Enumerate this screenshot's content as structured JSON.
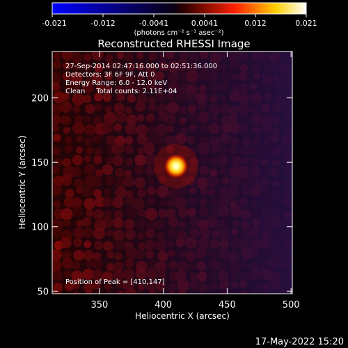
{
  "colorbar": {
    "ticks": [
      "-0.021",
      "-0.012",
      "-0.0041",
      "0.0041",
      "0.012",
      "0.021"
    ],
    "unit_label": "(photons cm⁻² s⁻¹ asec⁻²)",
    "stops": [
      "#0000ff",
      "#000000",
      "#ff0000",
      "#ffff00",
      "#ffffff"
    ]
  },
  "title": "Reconstructed RHESSI Image",
  "info": {
    "time_range": "27-Sep-2014 02:47:16.000 to 02:51:36.000",
    "detectors": "Detectors: 3F 6F 9F, Att 0",
    "energy": "Energy Range: 6.0 - 12.0 keV",
    "clean": "Clean     Total counts: 2.11E+04",
    "peak": "Position of Peak = [410,147]"
  },
  "axes": {
    "xlabel": "Heliocentric X (arcsec)",
    "ylabel": "Heliocentric Y (arcsec)",
    "xticks": [
      "350",
      "400",
      "450",
      "500"
    ],
    "yticks": [
      "50",
      "100",
      "150",
      "200"
    ],
    "xrange": [
      313,
      501
    ],
    "yrange": [
      48,
      236
    ]
  },
  "source": {
    "x": 410,
    "y": 147
  },
  "footer": {
    "date": "17-May-2022 15:20"
  }
}
